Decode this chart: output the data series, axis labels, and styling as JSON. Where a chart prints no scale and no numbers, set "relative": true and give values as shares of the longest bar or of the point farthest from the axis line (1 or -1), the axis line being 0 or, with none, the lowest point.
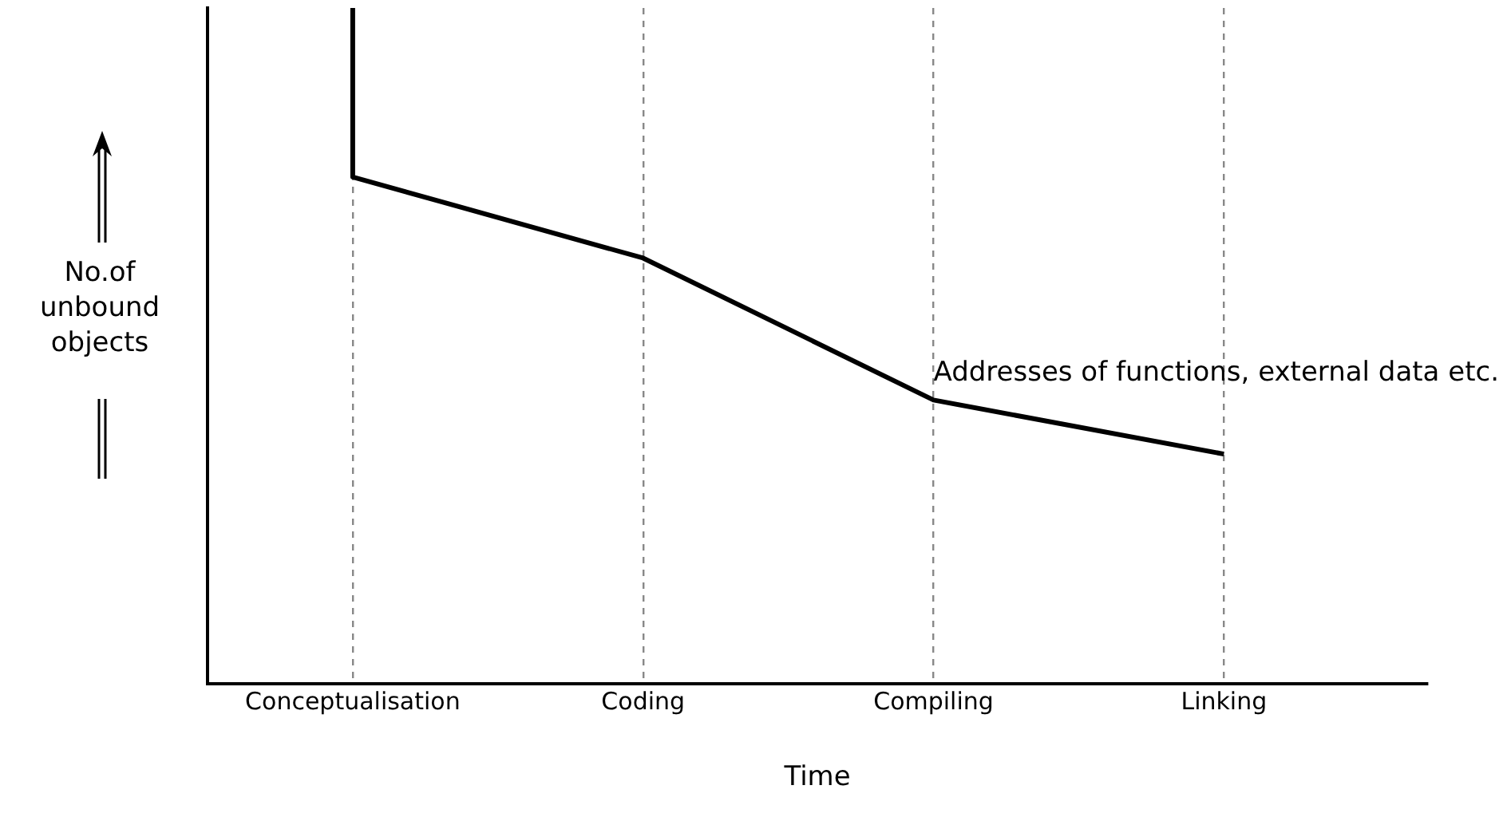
{
  "chart_data": {
    "type": "line",
    "relative": true,
    "xlabel": "Time",
    "ylabel": "No.of unbound objects",
    "categories": [
      "Conceptualisation",
      "Coding",
      "Compiling",
      "Linking"
    ],
    "series": [
      {
        "color": "#000000",
        "x": [
          "Conceptualisation",
          "Conceptualisation",
          "Coding",
          "Compiling",
          "Linking"
        ],
        "values": [
          1,
          0.75,
          0.63,
          0.42,
          0.34
        ]
      }
    ],
    "annotations": [
      {
        "text": "Addresses of functions, external data etc.",
        "x": "Compiling",
        "y": 0.42
      }
    ],
    "marker": "none",
    "line_style": "solid",
    "grid": "x",
    "legend": false,
    "tick_labels": "x"
  }
}
